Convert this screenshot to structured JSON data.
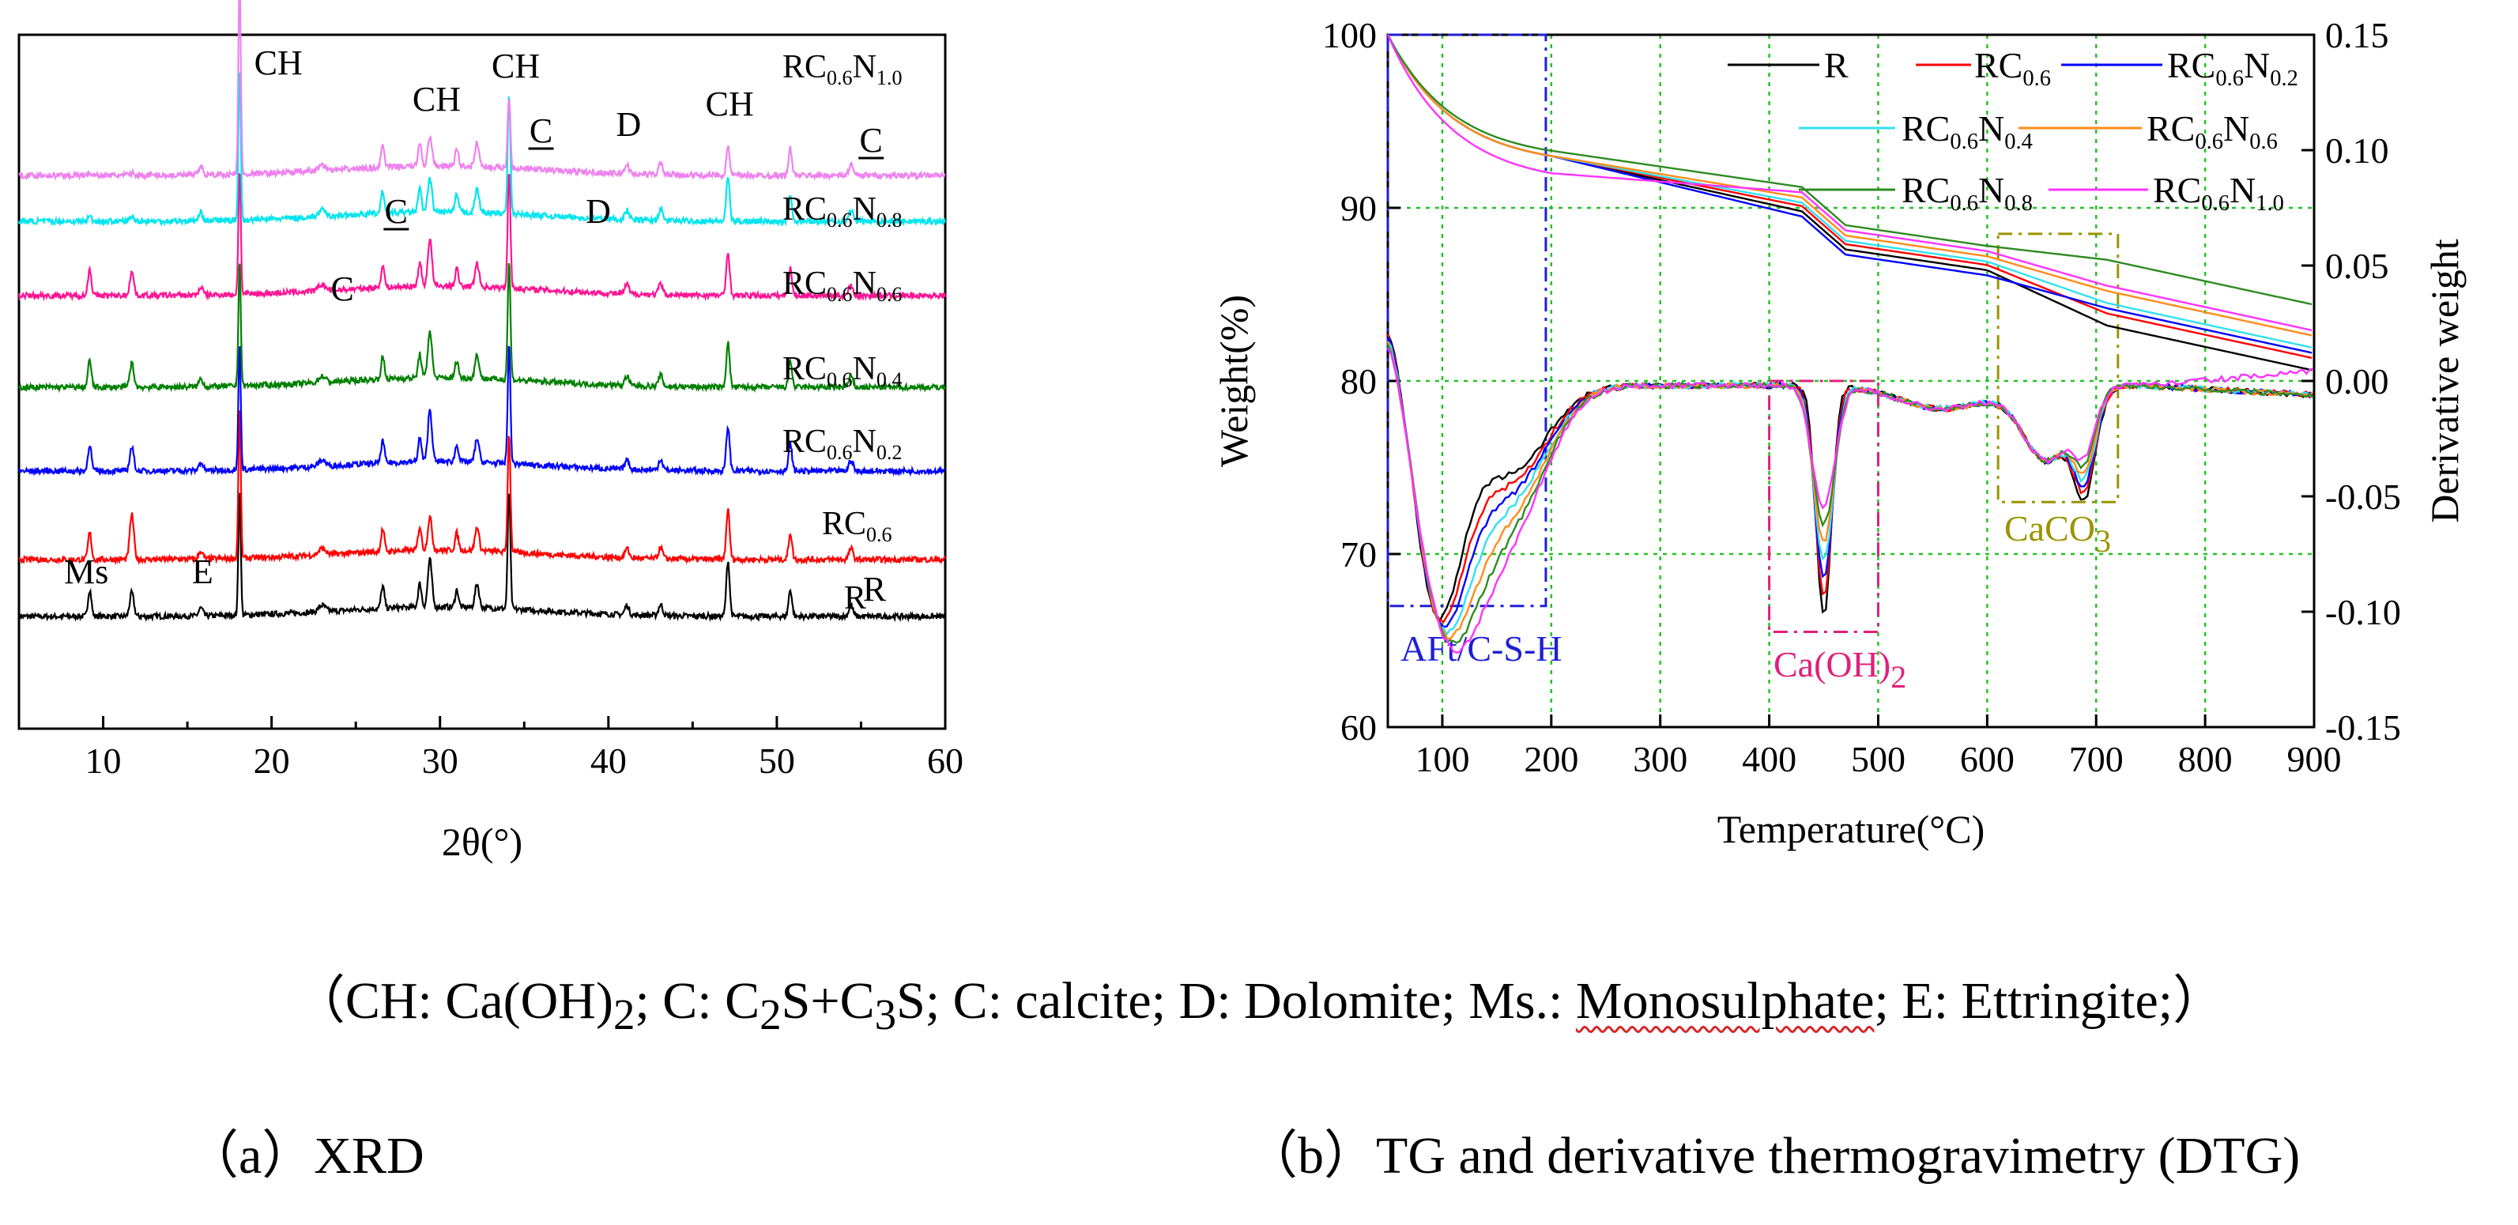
{
  "caption_legend": {
    "open": "（CH: Ca(OH)",
    "ch_sub": "2",
    "c1_mid": "; C: C",
    "c1_sub1": "2",
    "c1_mid2": "S+C",
    "c1_sub2": "3",
    "c1_tail": "S; C: calcite; D: Dolomite; Ms.: ",
    "ms_word": "Monosulphate",
    "close": "; E: Ettringite;）"
  },
  "subcaption_a": "（a）XRD",
  "subcaption_b": "（b）TG and derivative thermogravimetry (DTG)",
  "colors": {
    "R": "#000000",
    "RC0.6": "#ff0000",
    "RC0.6N0.2": "#0000ff",
    "RC0.6N0.4": "#008000",
    "RC0.6N0.6": "#ff1493",
    "RC0.6N0.8": "#00e5ee",
    "RC0.6N1.0": "#ee82ee",
    "TG_RC0.6N0.4": "#33e0f0",
    "TG_RC0.6N0.6": "#ff8c1a",
    "TG_RC0.6N0.8": "#2e8b22",
    "TG_RC0.6N1.0": "#ff33ff"
  },
  "chart_data": [
    {
      "type": "line",
      "panel": "a",
      "xlabel": "2θ(°)",
      "ylabel": "",
      "xlim": [
        5,
        60
      ],
      "xticks": [
        "10",
        "20",
        "30",
        "40",
        "50",
        "60"
      ],
      "series_labels": [
        {
          "base": "R",
          "c": "",
          "n": ""
        },
        {
          "base": "RC",
          "c": "0.6",
          "n": ""
        },
        {
          "base": "RC",
          "c": "0.6",
          "n": "0.2"
        },
        {
          "base": "RC",
          "c": "0.6",
          "n": "0.4"
        },
        {
          "base": "RC",
          "c": "0.6",
          "n": "0.6"
        },
        {
          "base": "RC",
          "c": "0.6",
          "n": "0.8"
        },
        {
          "base": "RC",
          "c": "0.6",
          "n": "1.0"
        }
      ],
      "peaks_2theta": {
        "Ms": 9.2,
        "C_small": 11.7,
        "E": 15.8,
        "CH_1": 18.1,
        "C_a": 23.0,
        "C_b": 26.6,
        "peak_28": 28.8,
        "CH_2": 29.4,
        "peak_31": 31.0,
        "peak_32": 32.2,
        "CH_3": 34.1,
        "D_a": 41.1,
        "peak_43": 43.1,
        "CH_4": 47.1,
        "C_c": 50.8,
        "R_peak": 54.4
      },
      "annotations": [
        {
          "text": "CH",
          "x": 20.4,
          "row": 6,
          "underline": false
        },
        {
          "text": "CH",
          "x": 29.8,
          "row": 6,
          "underline": false
        },
        {
          "text": "CH",
          "x": 34.5,
          "row": 6,
          "underline": false
        },
        {
          "text": "C",
          "x": 36.0,
          "row": 6,
          "underline": true
        },
        {
          "text": "D",
          "x": 41.2,
          "row": 6,
          "underline": false
        },
        {
          "text": "CH",
          "x": 47.2,
          "row": 6,
          "underline": false
        },
        {
          "text": "C",
          "x": 55.6,
          "row": 6,
          "underline": true
        },
        {
          "text": "C",
          "x": 27.4,
          "row": 5,
          "underline": true
        },
        {
          "text": "D",
          "x": 39.4,
          "row": 5,
          "underline": false
        },
        {
          "text": "C",
          "x": 24.2,
          "row": 4,
          "underline": false
        },
        {
          "text": "Ms",
          "x": 9.0,
          "row": 0,
          "underline": false
        },
        {
          "text": "E",
          "x": 15.9,
          "row": 0,
          "underline": false
        },
        {
          "text": "R",
          "x": 55.8,
          "row": 0,
          "underline": false
        }
      ]
    },
    {
      "type": "line",
      "panel": "b",
      "xlabel": "Temperature(°C)",
      "ylabel": "Weight(%)",
      "y2label": "Derivative weight",
      "xlim": [
        50,
        900
      ],
      "ylim": [
        60,
        100
      ],
      "y2lim": [
        -0.15,
        0.15
      ],
      "grid": true,
      "xticks": [
        "100",
        "200",
        "300",
        "400",
        "500",
        "600",
        "700",
        "800",
        "900"
      ],
      "yticks": [
        "60",
        "70",
        "80",
        "90",
        "100"
      ],
      "y2ticks": [
        "-0.15",
        "-0.10",
        "-0.05",
        "0.00",
        "0.05",
        "0.10",
        "0.15"
      ],
      "legend": [
        {
          "key": "R",
          "base": "R",
          "c": "",
          "n": ""
        },
        {
          "key": "RC0.6",
          "base": "RC",
          "c": "0.6",
          "n": ""
        },
        {
          "key": "RC0.6N0.2",
          "base": "RC",
          "c": "0.6",
          "n": "0.2"
        },
        {
          "key": "TG_RC0.6N0.4",
          "base": "RC",
          "c": "0.6",
          "n": "0.4"
        },
        {
          "key": "TG_RC0.6N0.6",
          "base": "RC",
          "c": "0.6",
          "n": "0.6"
        },
        {
          "key": "TG_RC0.6N0.8",
          "base": "RC",
          "c": "0.6",
          "n": "0.8"
        },
        {
          "key": "TG_RC0.6N1.0",
          "base": "RC",
          "c": "0.6",
          "n": "1.0"
        }
      ],
      "tg_final_weight_900C": [
        80.6,
        81.3,
        81.6,
        81.9,
        82.6,
        84.4,
        82.9
      ],
      "tg_weight_500C": [
        87.2,
        87.5,
        86.9,
        87.7,
        88.0,
        88.6,
        88.3
      ],
      "dtg_minima": [
        {
          "temperature": 95,
          "derivative": -0.095
        },
        {
          "temperature": 450,
          "derivative": -0.105
        },
        {
          "temperature": 660,
          "derivative": -0.035
        },
        {
          "temperature": 690,
          "derivative": -0.042
        }
      ],
      "regions": [
        {
          "label": "AFt/C-S-H",
          "x_range": [
            50,
            195
          ],
          "color": "#1f1fd6"
        },
        {
          "label": "Ca(OH)",
          "label_sub": "2",
          "x_range": [
            400,
            500
          ],
          "color": "#e0207a"
        },
        {
          "label": "CaCO",
          "label_sub": "3",
          "x_range": [
            610,
            720
          ],
          "color": "#9a9400"
        }
      ]
    }
  ]
}
